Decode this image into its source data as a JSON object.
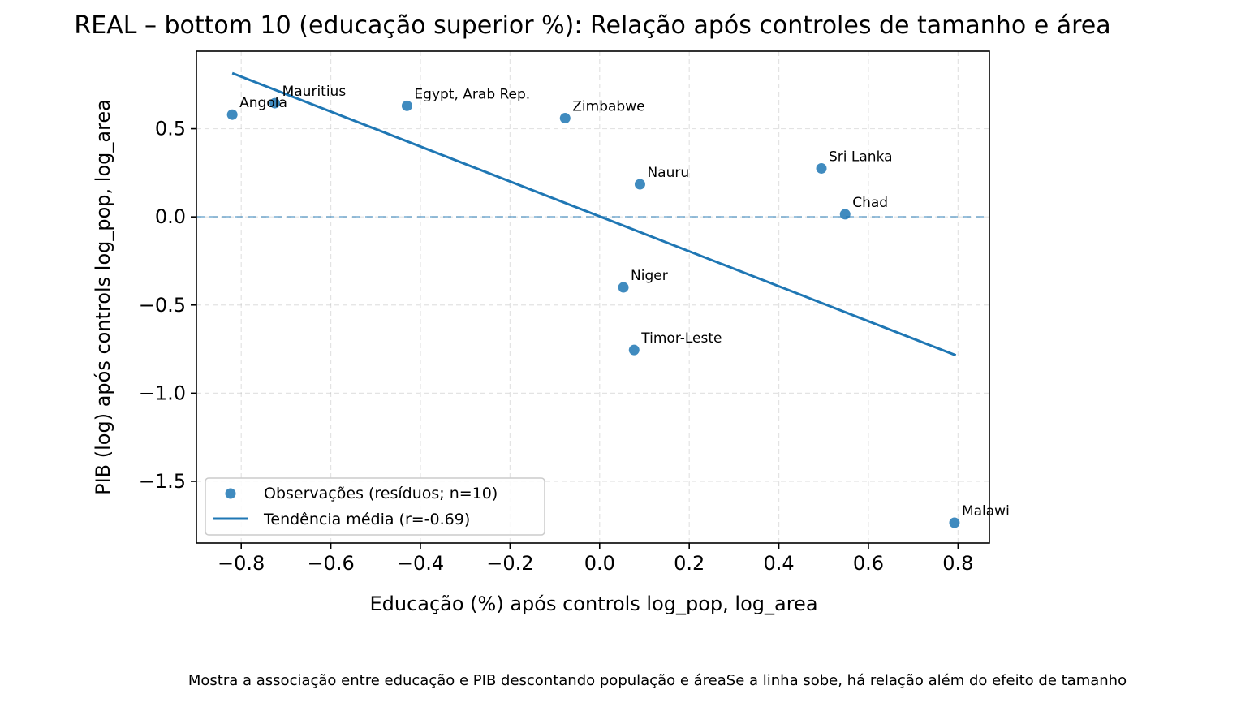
{
  "chart_data": {
    "type": "scatter",
    "title": "REAL – bottom 10 (educação superior %): Relação após controles de tamanho e área",
    "xlabel": "Educação (%) após controls log_pop, log_area",
    "ylabel": "PIB (log) após controls log_pop, log_area",
    "caption": "Mostra a associação entre educação e PIB descontando população e áreaSe a linha sobe, há relação além do efeito de tamanho",
    "xlim": [
      -0.9,
      0.87
    ],
    "ylim": [
      -1.85,
      0.94
    ],
    "xticks": [
      -0.8,
      -0.6,
      -0.4,
      -0.2,
      0.0,
      0.2,
      0.4,
      0.6,
      0.8
    ],
    "xtick_labels": [
      "−0.8",
      "−0.6",
      "−0.4",
      "−0.2",
      "0.0",
      "0.2",
      "0.4",
      "0.6",
      "0.8"
    ],
    "yticks": [
      0.5,
      0.0,
      -0.5,
      -1.0,
      -1.5
    ],
    "ytick_labels": [
      "0.5",
      "0.0",
      "−0.5",
      "−1.0",
      "−1.5"
    ],
    "grid": true,
    "legend_position": "lower-left",
    "points": [
      {
        "label": "Angola",
        "x": -0.82,
        "y": 0.58
      },
      {
        "label": "Mauritius",
        "x": -0.725,
        "y": 0.645
      },
      {
        "label": "Egypt, Arab Rep.",
        "x": -0.43,
        "y": 0.63
      },
      {
        "label": "Zimbabwe",
        "x": -0.077,
        "y": 0.56
      },
      {
        "label": "Nauru",
        "x": 0.09,
        "y": 0.185
      },
      {
        "label": "Sri Lanka",
        "x": 0.495,
        "y": 0.275
      },
      {
        "label": "Chad",
        "x": 0.548,
        "y": 0.015
      },
      {
        "label": "Niger",
        "x": 0.053,
        "y": -0.4
      },
      {
        "label": "Timor-Leste",
        "x": 0.077,
        "y": -0.755
      },
      {
        "label": "Malawi",
        "x": 0.792,
        "y": -1.735
      }
    ],
    "trend_line": {
      "x": [
        -0.82,
        0.795
      ],
      "y": [
        0.815,
        -0.785
      ]
    },
    "reference_line_y": 0.0,
    "series": [
      {
        "name": "Observações (resíduos; n=10)",
        "kind": "scatter",
        "color": "#1f77b4"
      },
      {
        "name": "Tendência média (r=-0.69)",
        "kind": "line",
        "color": "#1f77b4"
      }
    ]
  }
}
